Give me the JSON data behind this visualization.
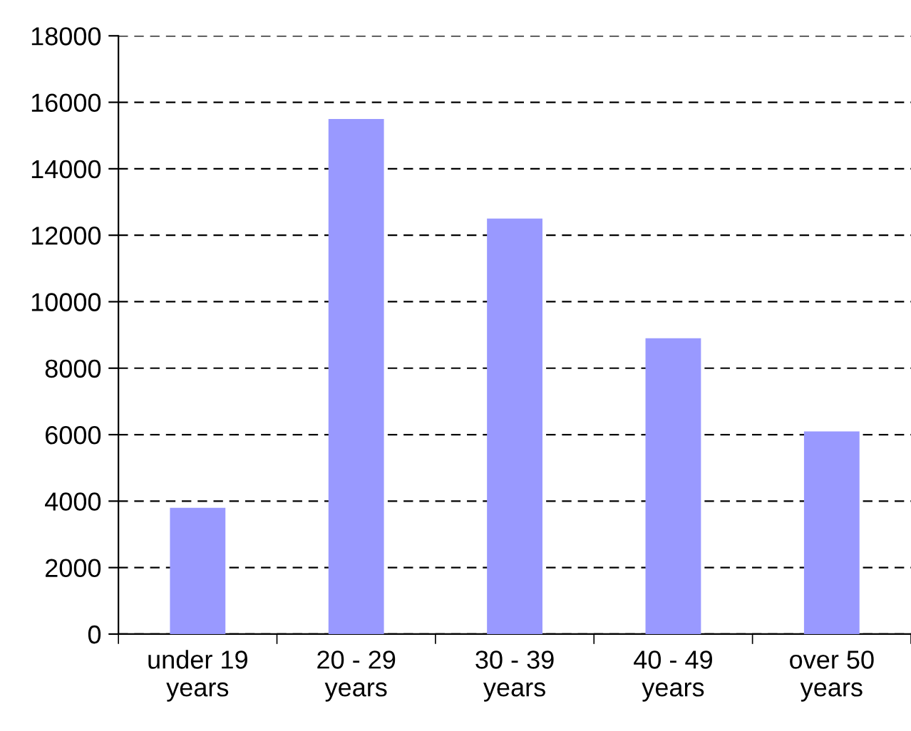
{
  "chart_data": {
    "type": "bar",
    "categories": [
      "under 19\nyears",
      "20 - 29\nyears",
      "30 - 39\nyears",
      "40 - 49\nyears",
      "over 50\nyears"
    ],
    "values": [
      3800,
      15500,
      12500,
      8900,
      6100
    ],
    "color": "#9999ff",
    "ylim": [
      0,
      18000
    ],
    "yticks": [
      0,
      2000,
      4000,
      6000,
      8000,
      10000,
      12000,
      14000,
      16000,
      18000
    ],
    "grid": "y",
    "legend": false
  }
}
